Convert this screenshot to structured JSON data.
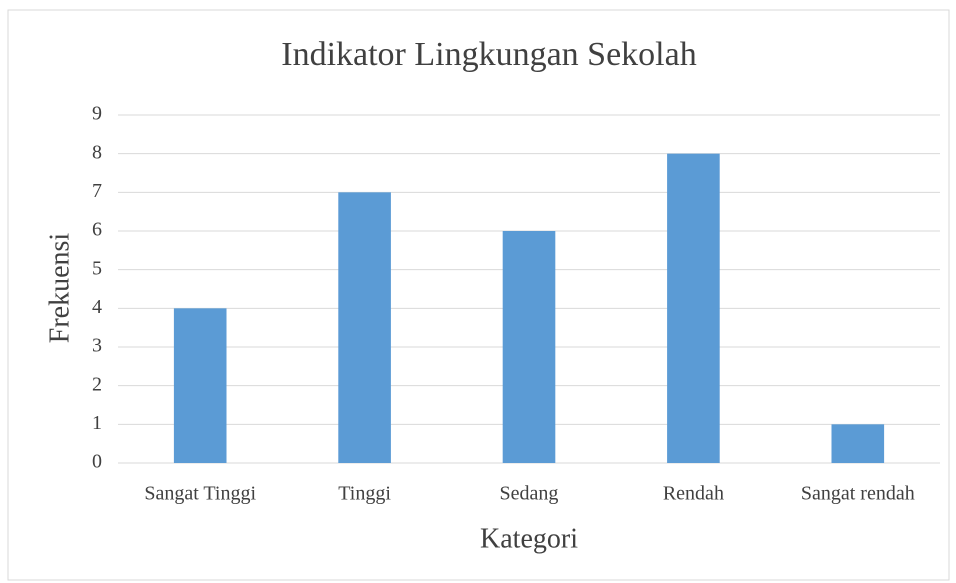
{
  "chart_data": {
    "type": "bar",
    "title": "Indikator Lingkungan Sekolah",
    "x_label": "Kategori",
    "y_label": "Frekuensi",
    "categories": [
      "Sangat Tinggi",
      "Tinggi",
      "Sedang",
      "Rendah",
      "Sangat rendah"
    ],
    "values": [
      4,
      7,
      6,
      8,
      1
    ],
    "color": "#5b9bd5",
    "ylim": [
      0,
      9
    ],
    "yticks": [
      0,
      1,
      2,
      3,
      4,
      5,
      6,
      7,
      8,
      9
    ],
    "grid": true
  }
}
